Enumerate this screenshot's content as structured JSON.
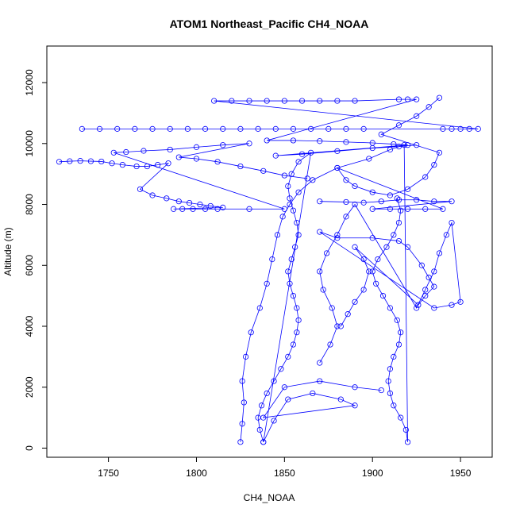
{
  "chart_data": {
    "type": "scatter",
    "title": "ATOM1 Northeast_Pacific CH4_NOAA",
    "xlabel": "CH4_NOAA",
    "ylabel": "Altitude (m)",
    "xlim": [
      1715,
      1968
    ],
    "ylim": [
      -300,
      13200
    ],
    "xticks": [
      1750,
      1800,
      1850,
      1900,
      1950
    ],
    "yticks": [
      0,
      2000,
      4000,
      6000,
      8000,
      10000,
      12000
    ],
    "color": "#0000ff",
    "marker": "open-circle",
    "grid": false,
    "legend": "none",
    "series": [
      {
        "values": [
          [
            1825,
            200
          ],
          [
            1826,
            800
          ],
          [
            1827,
            1500
          ],
          [
            1826,
            2200
          ],
          [
            1828,
            3000
          ],
          [
            1831,
            3800
          ],
          [
            1836,
            4600
          ],
          [
            1840,
            5400
          ],
          [
            1843,
            6200
          ],
          [
            1846,
            7000
          ],
          [
            1849,
            7600
          ],
          [
            1853,
            8000
          ],
          [
            1858,
            8400
          ],
          [
            1866,
            8800
          ],
          [
            1880,
            9200
          ],
          [
            1898,
            9500
          ],
          [
            1910,
            9800
          ],
          [
            1918,
            9950
          ],
          [
            1920,
            200
          ],
          [
            1919,
            600
          ],
          [
            1916,
            1000
          ],
          [
            1912,
            1400
          ],
          [
            1910,
            1800
          ],
          [
            1909,
            2200
          ],
          [
            1910,
            2600
          ],
          [
            1912,
            3000
          ],
          [
            1915,
            3400
          ],
          [
            1916,
            3800
          ],
          [
            1914,
            4200
          ],
          [
            1910,
            4600
          ],
          [
            1906,
            5000
          ],
          [
            1902,
            5400
          ],
          [
            1900,
            5800
          ],
          [
            1903,
            6200
          ],
          [
            1908,
            6600
          ],
          [
            1912,
            7000
          ],
          [
            1915,
            7400
          ],
          [
            1916,
            7800
          ],
          [
            1914,
            8200
          ]
        ]
      },
      {
        "values": [
          [
            1838,
            200
          ],
          [
            1836,
            600
          ],
          [
            1835,
            1000
          ],
          [
            1837,
            1400
          ],
          [
            1840,
            1800
          ],
          [
            1844,
            2200
          ],
          [
            1848,
            2600
          ],
          [
            1852,
            3000
          ],
          [
            1855,
            3400
          ],
          [
            1857,
            3800
          ],
          [
            1858,
            4200
          ],
          [
            1857,
            4600
          ],
          [
            1855,
            5000
          ],
          [
            1853,
            5400
          ],
          [
            1852,
            5800
          ],
          [
            1854,
            6200
          ],
          [
            1856,
            6600
          ],
          [
            1858,
            7000
          ],
          [
            1857,
            7400
          ],
          [
            1855,
            7800
          ],
          [
            1853,
            8200
          ],
          [
            1852,
            8600
          ],
          [
            1854,
            9000
          ],
          [
            1858,
            9400
          ],
          [
            1865,
            9700
          ],
          [
            1838,
            200
          ],
          [
            1844,
            900
          ],
          [
            1852,
            1600
          ],
          [
            1866,
            1800
          ],
          [
            1882,
            1600
          ],
          [
            1890,
            1400
          ],
          [
            1838,
            1000
          ],
          [
            1850,
            2000
          ],
          [
            1870,
            2200
          ],
          [
            1890,
            2000
          ],
          [
            1905,
            1900
          ]
        ]
      },
      {
        "values": [
          [
            1870,
            2800
          ],
          [
            1876,
            3400
          ],
          [
            1880,
            4000
          ],
          [
            1877,
            4600
          ],
          [
            1872,
            5200
          ],
          [
            1870,
            5800
          ],
          [
            1874,
            6400
          ],
          [
            1880,
            7000
          ],
          [
            1885,
            7600
          ],
          [
            1890,
            8000
          ],
          [
            1925,
            4600
          ],
          [
            1930,
            5200
          ],
          [
            1935,
            5800
          ],
          [
            1938,
            6400
          ],
          [
            1942,
            7000
          ],
          [
            1945,
            7400
          ],
          [
            1950,
            4800
          ],
          [
            1945,
            4700
          ],
          [
            1935,
            4600
          ],
          [
            1870,
            7100
          ],
          [
            1880,
            6900
          ],
          [
            1900,
            6900
          ],
          [
            1915,
            6800
          ],
          [
            1920,
            6600
          ],
          [
            1928,
            6000
          ],
          [
            1932,
            5600
          ],
          [
            1935,
            5300
          ],
          [
            1930,
            5000
          ],
          [
            1926,
            4700
          ],
          [
            1890,
            6600
          ],
          [
            1895,
            6200
          ],
          [
            1898,
            5800
          ],
          [
            1895,
            5200
          ],
          [
            1890,
            4800
          ],
          [
            1886,
            4400
          ],
          [
            1882,
            4000
          ]
        ]
      },
      {
        "values": [
          [
            1722,
            9400
          ],
          [
            1728,
            9420
          ],
          [
            1734,
            9430
          ],
          [
            1740,
            9420
          ],
          [
            1746,
            9410
          ],
          [
            1752,
            9350
          ],
          [
            1758,
            9300
          ],
          [
            1766,
            9250
          ],
          [
            1772,
            9250
          ],
          [
            1778,
            9300
          ],
          [
            1784,
            9350
          ],
          [
            1768,
            8500
          ],
          [
            1775,
            8300
          ],
          [
            1783,
            8200
          ],
          [
            1790,
            8100
          ],
          [
            1796,
            8050
          ],
          [
            1802,
            8000
          ],
          [
            1808,
            7950
          ],
          [
            1815,
            7900
          ],
          [
            1787,
            7850
          ],
          [
            1792,
            7850
          ],
          [
            1798,
            7850
          ],
          [
            1805,
            7850
          ],
          [
            1812,
            7850
          ],
          [
            1830,
            7850
          ],
          [
            1850,
            7850
          ],
          [
            1753,
            9700
          ],
          [
            1760,
            9720
          ],
          [
            1770,
            9760
          ],
          [
            1785,
            9800
          ],
          [
            1800,
            9880
          ],
          [
            1815,
            9950
          ],
          [
            1830,
            10000
          ],
          [
            1790,
            9550
          ],
          [
            1800,
            9500
          ],
          [
            1812,
            9400
          ],
          [
            1825,
            9250
          ],
          [
            1838,
            9100
          ],
          [
            1850,
            8950
          ],
          [
            1863,
            8850
          ]
        ]
      },
      {
        "values": [
          [
            1735,
            10480
          ],
          [
            1745,
            10480
          ],
          [
            1755,
            10480
          ],
          [
            1765,
            10480
          ],
          [
            1775,
            10480
          ],
          [
            1785,
            10480
          ],
          [
            1795,
            10480
          ],
          [
            1805,
            10480
          ],
          [
            1815,
            10480
          ],
          [
            1825,
            10480
          ],
          [
            1835,
            10480
          ],
          [
            1845,
            10480
          ],
          [
            1855,
            10480
          ],
          [
            1865,
            10480
          ],
          [
            1875,
            10480
          ],
          [
            1885,
            10480
          ],
          [
            1895,
            10480
          ],
          [
            1940,
            10480
          ],
          [
            1945,
            10480
          ],
          [
            1950,
            10480
          ],
          [
            1955,
            10480
          ],
          [
            1960,
            10480
          ],
          [
            1810,
            11400
          ],
          [
            1820,
            11400
          ],
          [
            1830,
            11400
          ],
          [
            1840,
            11400
          ],
          [
            1850,
            11400
          ],
          [
            1860,
            11400
          ],
          [
            1870,
            11400
          ],
          [
            1880,
            11400
          ],
          [
            1890,
            11400
          ],
          [
            1915,
            11450
          ],
          [
            1920,
            11450
          ],
          [
            1925,
            11450
          ],
          [
            1840,
            10100
          ],
          [
            1855,
            10100
          ],
          [
            1870,
            10080
          ],
          [
            1885,
            10050
          ],
          [
            1900,
            10020
          ],
          [
            1912,
            9980
          ],
          [
            1920,
            9950
          ],
          [
            1845,
            9600
          ],
          [
            1860,
            9650
          ],
          [
            1880,
            9750
          ],
          [
            1900,
            9850
          ],
          [
            1915,
            9900
          ],
          [
            1925,
            9950
          ]
        ]
      },
      {
        "values": [
          [
            1870,
            8100
          ],
          [
            1885,
            8080
          ],
          [
            1895,
            8060
          ],
          [
            1905,
            8100
          ],
          [
            1915,
            8150
          ],
          [
            1925,
            8150
          ],
          [
            1935,
            8100
          ],
          [
            1945,
            8100
          ],
          [
            1900,
            7850
          ],
          [
            1910,
            7850
          ],
          [
            1920,
            7850
          ],
          [
            1930,
            7850
          ],
          [
            1940,
            7850
          ],
          [
            1880,
            9200
          ],
          [
            1885,
            8800
          ],
          [
            1890,
            8600
          ],
          [
            1900,
            8400
          ],
          [
            1910,
            8300
          ],
          [
            1920,
            8500
          ],
          [
            1930,
            8900
          ],
          [
            1935,
            9300
          ],
          [
            1938,
            9700
          ],
          [
            1905,
            10300
          ],
          [
            1915,
            10600
          ],
          [
            1925,
            10900
          ],
          [
            1932,
            11200
          ],
          [
            1938,
            11500
          ]
        ]
      }
    ]
  }
}
